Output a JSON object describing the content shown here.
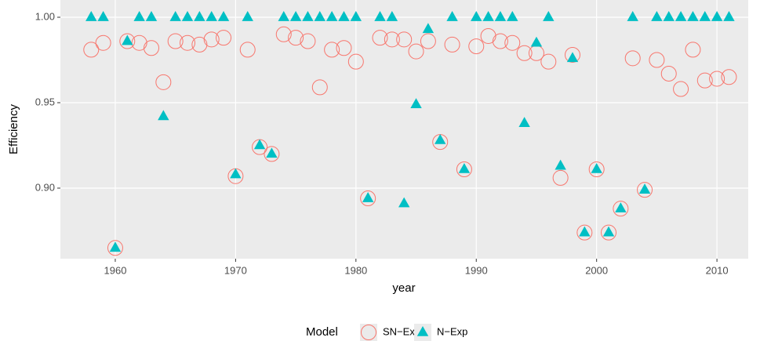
{
  "chart_data": {
    "type": "scatter",
    "x_label": "year",
    "y_label": "Efficiency",
    "x": [
      1958,
      1959,
      1960,
      1961,
      1962,
      1963,
      1964,
      1965,
      1966,
      1967,
      1968,
      1969,
      1970,
      1971,
      1972,
      1973,
      1974,
      1975,
      1976,
      1977,
      1978,
      1979,
      1980,
      1981,
      1982,
      1983,
      1984,
      1985,
      1986,
      1987,
      1988,
      1989,
      1990,
      1991,
      1992,
      1993,
      1994,
      1995,
      1996,
      1997,
      1998,
      1999,
      2000,
      2001,
      2002,
      2003,
      2004,
      2005,
      2006,
      2007,
      2008,
      2009,
      2010,
      2011
    ],
    "series": [
      {
        "name": "SN−Exp",
        "color": "#F8766D",
        "marker": "circle-open",
        "values": [
          0.981,
          0.985,
          0.865,
          0.986,
          0.985,
          0.982,
          0.962,
          0.986,
          0.985,
          0.984,
          0.987,
          0.988,
          0.907,
          0.981,
          0.924,
          0.92,
          0.99,
          0.988,
          0.986,
          0.959,
          0.981,
          0.982,
          0.974,
          0.894,
          0.988,
          0.987,
          0.987,
          0.98,
          0.986,
          0.927,
          0.984,
          0.911,
          0.983,
          0.989,
          0.986,
          0.985,
          0.979,
          0.979,
          0.974,
          0.906,
          0.978,
          0.874,
          0.911,
          0.874,
          0.888,
          0.976,
          0.899,
          0.975,
          0.967,
          0.958,
          0.981,
          0.963,
          0.964,
          0.965
        ]
      },
      {
        "name": "N−Exp",
        "color": "#00BFC4",
        "marker": "triangle",
        "values": [
          1.0,
          1.0,
          0.865,
          0.986,
          1.0,
          1.0,
          0.942,
          1.0,
          1.0,
          1.0,
          1.0,
          1.0,
          0.908,
          1.0,
          0.925,
          0.92,
          1.0,
          1.0,
          1.0,
          1.0,
          1.0,
          1.0,
          1.0,
          0.894,
          1.0,
          1.0,
          0.891,
          0.949,
          0.993,
          0.928,
          1.0,
          0.911,
          1.0,
          1.0,
          1.0,
          1.0,
          0.938,
          0.985,
          1.0,
          0.913,
          0.976,
          0.874,
          0.911,
          0.874,
          0.888,
          1.0,
          0.899,
          1.0,
          1.0,
          1.0,
          1.0,
          1.0,
          1.0,
          1.0
        ]
      }
    ],
    "xlim": [
      1955.44,
      2012.6
    ],
    "xticks": [
      1960,
      1970,
      1980,
      1990,
      2000,
      2010
    ],
    "ylim": [
      0.8587,
      1.0101
    ],
    "yticks": [
      {
        "value": 0.9,
        "label": "0.90"
      },
      {
        "value": 0.95,
        "label": "0.95"
      },
      {
        "value": 1.0,
        "label": "1.00"
      }
    ],
    "grid": true,
    "legend_position": "bottom",
    "legend_title": "Model"
  }
}
